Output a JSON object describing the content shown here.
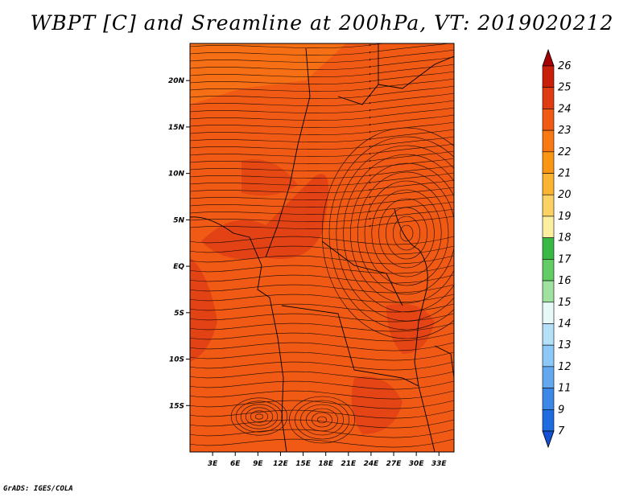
{
  "title": "WBPT [C] and Sreamline at 200hPa, VT: 2019020212",
  "credit": "GrADS: IGES/COLA",
  "map": {
    "lon_range": [
      0,
      35
    ],
    "lat_range": [
      -20,
      24
    ],
    "lon_ticks": [
      "3E",
      "6E",
      "9E",
      "12E",
      "15E",
      "18E",
      "21E",
      "24E",
      "27E",
      "30E",
      "33E"
    ],
    "lon_tick_values": [
      3,
      6,
      9,
      12,
      15,
      18,
      21,
      24,
      27,
      30,
      33
    ],
    "lat_ticks": [
      "20N",
      "15N",
      "10N",
      "5N",
      "EQ",
      "5S",
      "10S",
      "15S"
    ],
    "lat_tick_values": [
      20,
      15,
      10,
      5,
      0,
      -5,
      -10,
      -15
    ],
    "field_color": "#f05a14"
  },
  "colorbar": {
    "labels": [
      "26",
      "25",
      "24",
      "23",
      "22",
      "21",
      "20",
      "19",
      "18",
      "17",
      "16",
      "15",
      "14",
      "13",
      "12",
      "11",
      "9",
      "7"
    ],
    "colors": [
      "#a50000",
      "#c81e0a",
      "#e03c14",
      "#f05a14",
      "#f87814",
      "#fa9614",
      "#fab432",
      "#fcd264",
      "#fcf0a0",
      "#38b844",
      "#64cc64",
      "#a0e0a0",
      "#e6f8f8",
      "#b4e0f8",
      "#8cc8f8",
      "#64a8f0",
      "#3c88e8",
      "#1e6ce0",
      "#1450d2"
    ]
  }
}
